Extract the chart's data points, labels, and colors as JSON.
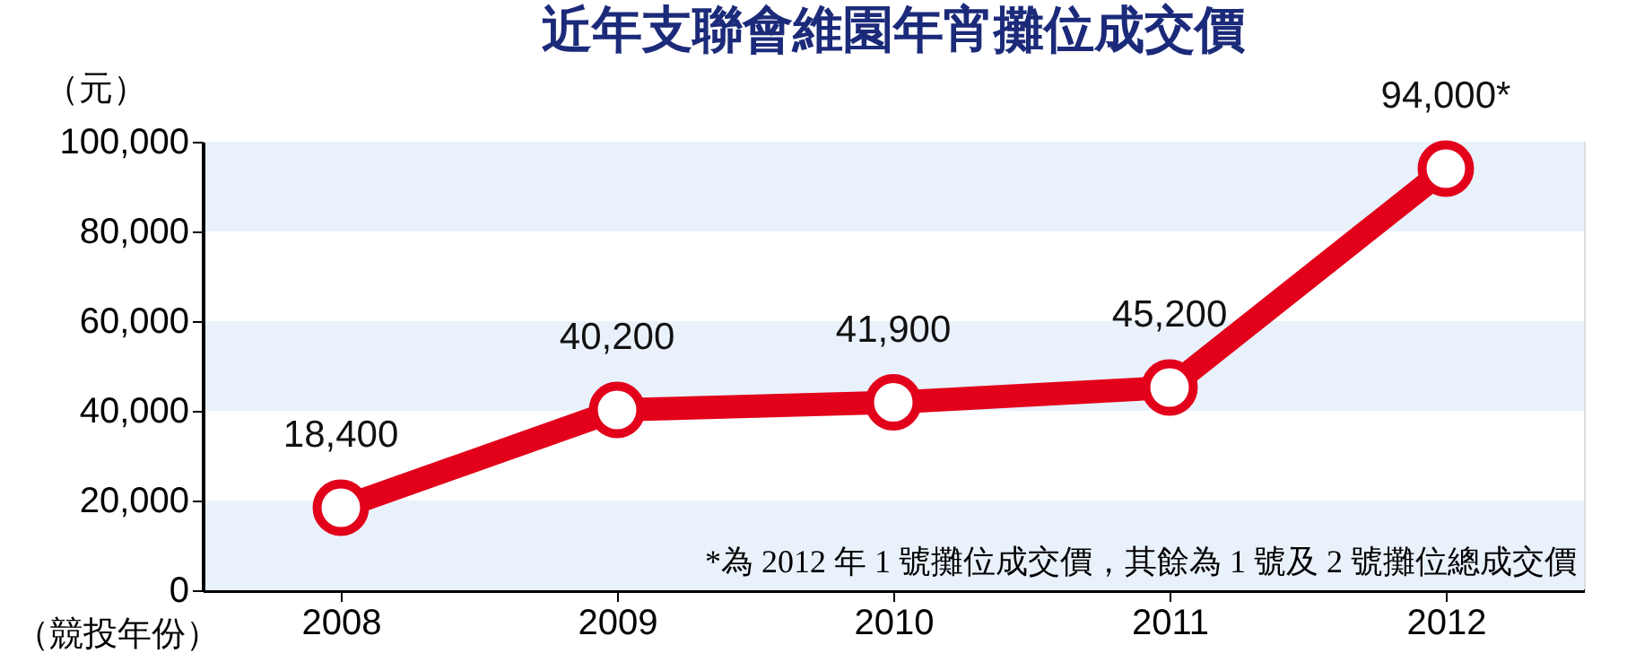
{
  "chart_data": {
    "type": "line",
    "title": "近年支聯會維園年宵攤位成交價",
    "ylabel": "（元）",
    "xlabel": "（競投年份）",
    "categories": [
      "2008",
      "2009",
      "2010",
      "2011",
      "2012"
    ],
    "series": [
      {
        "color": "#e2001a",
        "values": [
          18400,
          40200,
          41900,
          45200,
          94000
        ],
        "value_labels": [
          "18,400",
          "40,200",
          "41,900",
          "45,200",
          "94,000*"
        ]
      }
    ],
    "ylim": [
      0,
      100000
    ],
    "yticks": [
      0,
      {
        "value": 20000,
        "label": "20,000"
      },
      {
        "value": 40000,
        "label": "40,000"
      },
      {
        "value": 60000,
        "label": "60,000"
      },
      {
        "value": 80000,
        "label": "80,000"
      },
      {
        "value": 100000,
        "label": "100,000"
      }
    ],
    "bands": [
      {
        "axis": "y",
        "from": 0,
        "to": 20000,
        "color": "#e9f1fb"
      },
      {
        "axis": "y",
        "from": 40000,
        "to": 60000,
        "color": "#e9f1fb"
      },
      {
        "axis": "y",
        "from": 80000,
        "to": 100000,
        "color": "#e9f1fb"
      }
    ],
    "annotations": [
      "*為 2012 年 1 號攤位成交價，其餘為 1 號及 2 號攤位總成交價"
    ],
    "grid": false,
    "marker": "circle",
    "line_style": "solid"
  }
}
